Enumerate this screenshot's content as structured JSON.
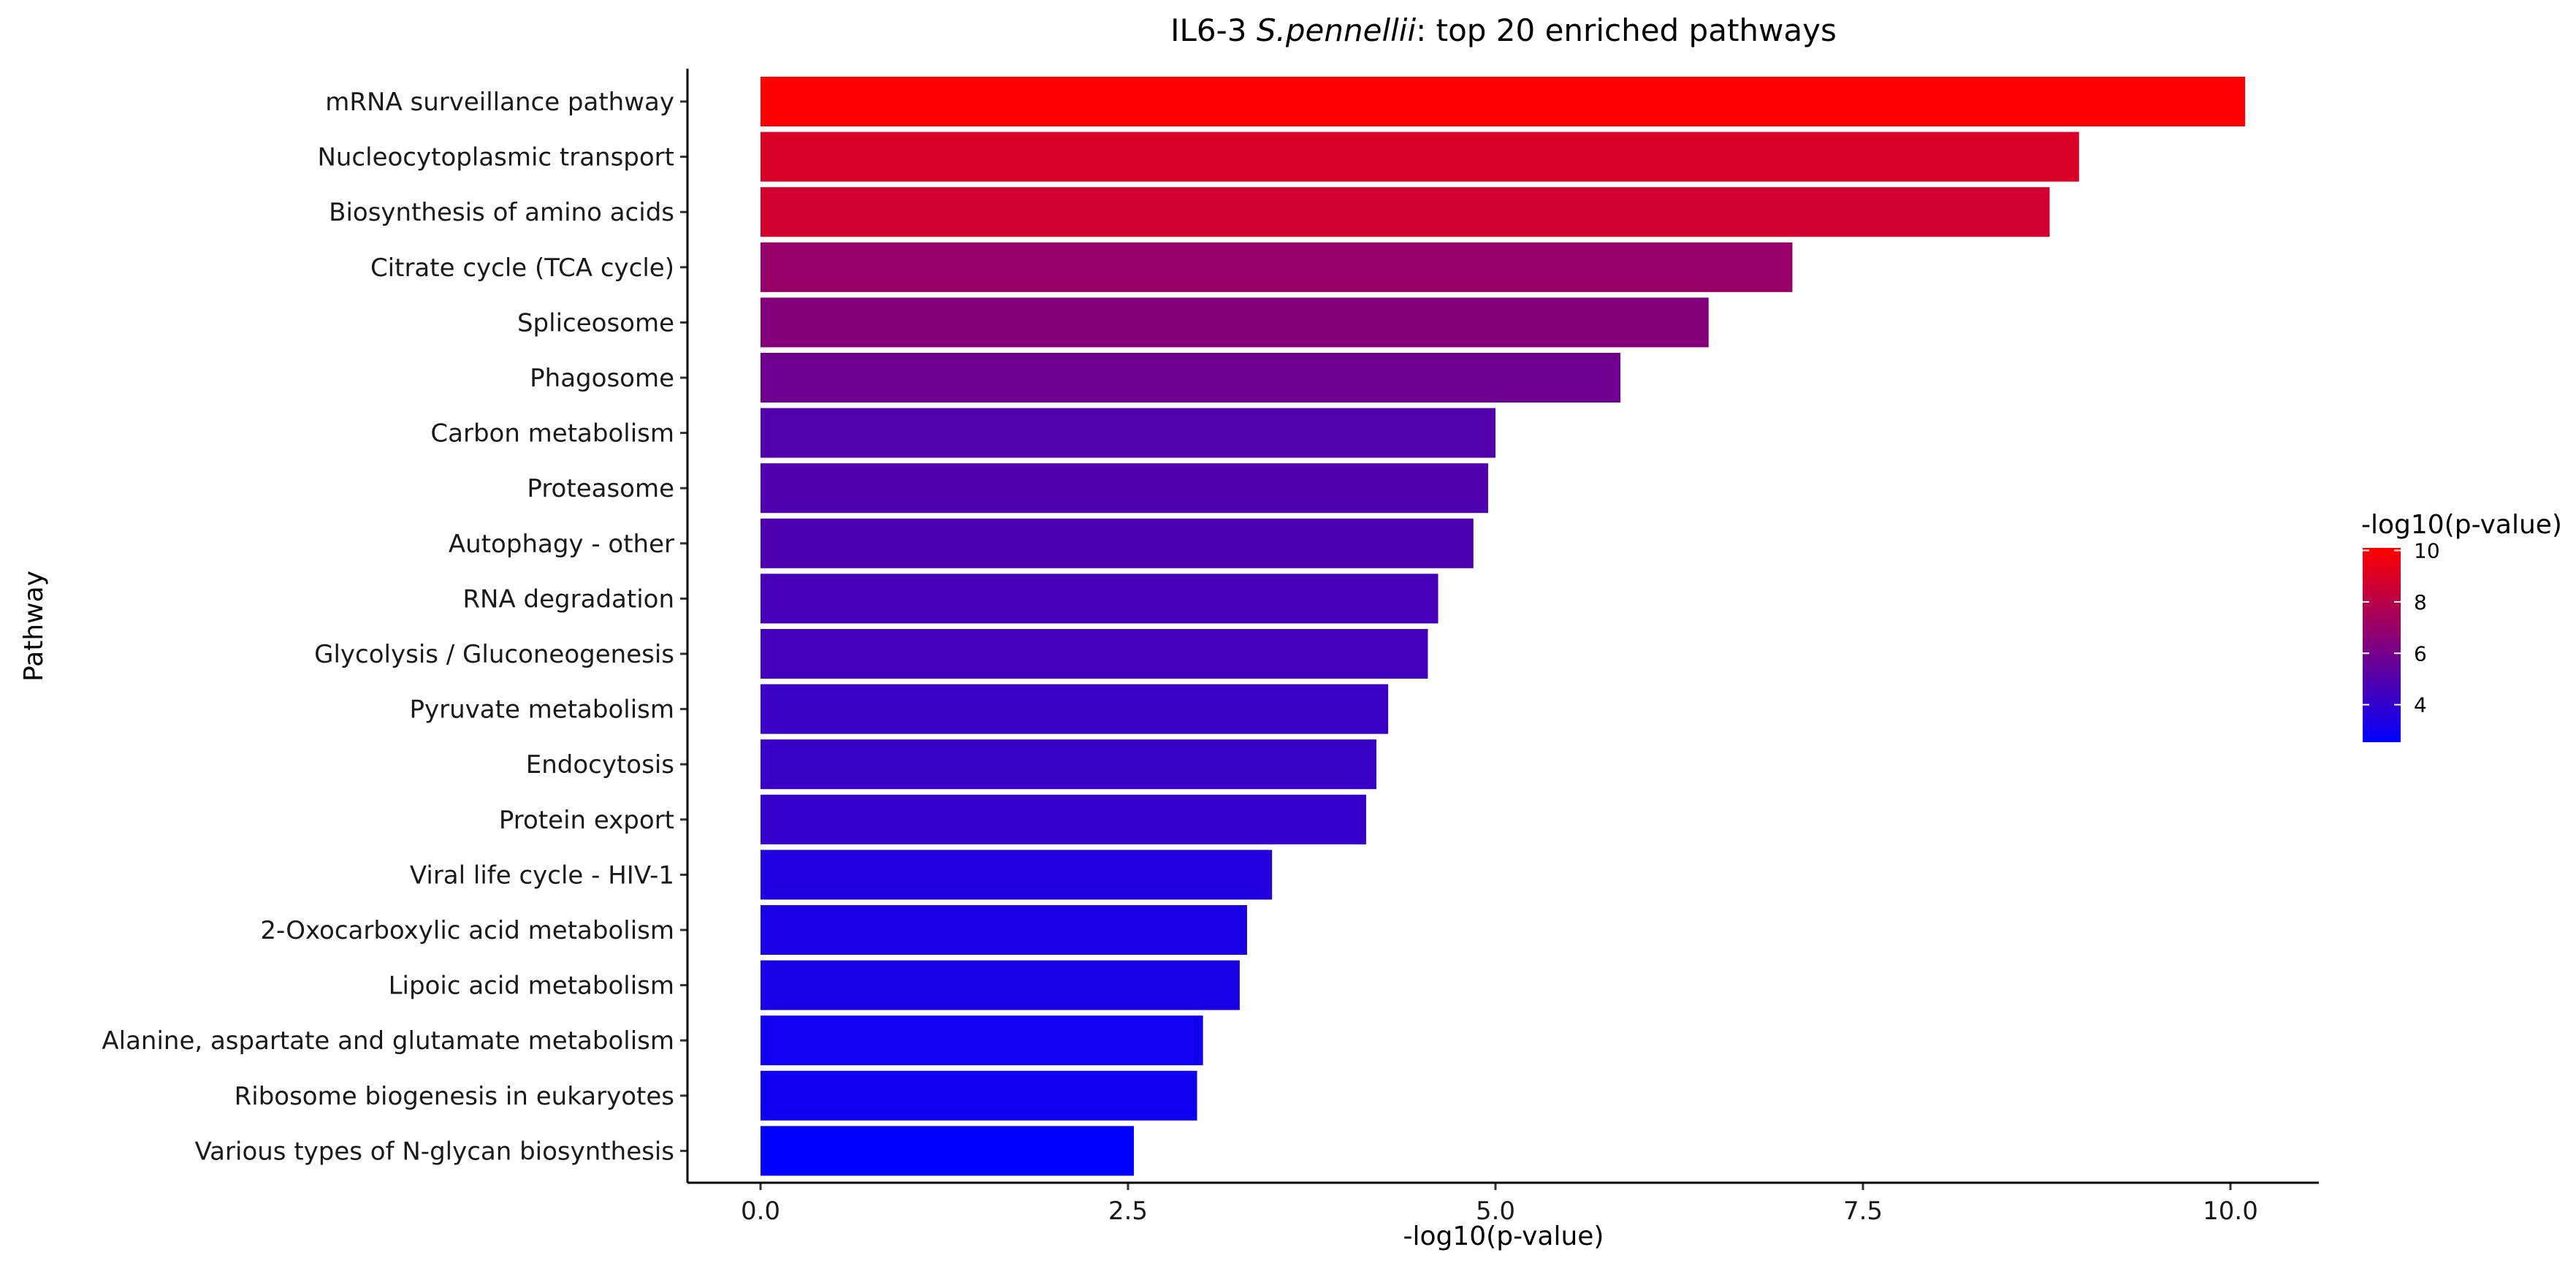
{
  "chart_data": {
    "type": "bar",
    "orientation": "horizontal",
    "title": {
      "prefix": "IL6-3",
      "italic": "S.pennellii",
      "suffix": ": top 20 enriched pathways"
    },
    "xlabel": "-log10(p-value)",
    "ylabel": "Pathway",
    "xlim": [
      0,
      10.6
    ],
    "x_ticks": [
      0.0,
      2.5,
      5.0,
      7.5,
      10.0
    ],
    "x_tick_labels": [
      "0.0",
      "2.5",
      "5.0",
      "7.5",
      "10.0"
    ],
    "categories": [
      "mRNA surveillance pathway",
      "Nucleocytoplasmic transport",
      "Biosynthesis of amino acids",
      "Citrate cycle (TCA cycle)",
      "Spliceosome",
      "Phagosome",
      "Carbon metabolism",
      "Proteasome",
      "Autophagy - other",
      "RNA degradation",
      "Glycolysis / Gluconeogenesis",
      "Pyruvate metabolism",
      "Endocytosis",
      "Protein export",
      "Viral life cycle - HIV-1",
      "2-Oxocarboxylic acid metabolism",
      "Lipoic acid metabolism",
      "Alanine, aspartate and glutamate metabolism",
      "Ribosome biogenesis in eukaryotes",
      "Various types of N-glycan biosynthesis"
    ],
    "values": [
      10.1,
      8.97,
      8.77,
      7.02,
      6.45,
      5.85,
      5.0,
      4.95,
      4.85,
      4.61,
      4.54,
      4.27,
      4.19,
      4.12,
      3.48,
      3.31,
      3.26,
      3.01,
      2.97,
      2.54
    ],
    "color_scale": {
      "title": "-log10(p-value)",
      "low_color": "#0000FF",
      "high_color": "#FF0000",
      "range": [
        2.54,
        10.1
      ],
      "ticks": [
        4,
        6,
        8,
        10
      ],
      "tick_labels": [
        "4",
        "6",
        "8",
        "10"
      ]
    },
    "legend_position": "right",
    "grid": false
  }
}
